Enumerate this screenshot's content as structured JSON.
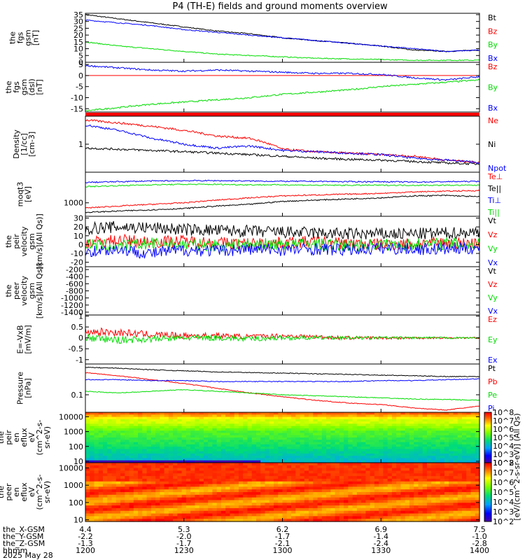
{
  "title": "P4 (TH-E) fields and ground moments overview",
  "colors": {
    "black": "#000000",
    "red": "#ff0000",
    "green": "#00dd00",
    "blue": "#0000ff"
  },
  "chart_data": [
    {
      "type": "line",
      "panel": "fgs_gsm_total",
      "ylabel_lines": [
        "the",
        "fgs",
        "gsm",
        "[nT]"
      ],
      "yticks": [
        0,
        5,
        10,
        15,
        20,
        25,
        30,
        35
      ],
      "ylim": [
        0,
        36
      ],
      "x": [
        "1200",
        "1210",
        "1220",
        "1230",
        "1240",
        "1250",
        "1300",
        "1310",
        "1320",
        "1330",
        "1340",
        "1350",
        "1400"
      ],
      "series": [
        {
          "name": "Bt",
          "color": "#000000",
          "values": [
            35,
            32,
            29,
            26,
            23,
            21,
            18,
            16,
            14,
            12,
            9,
            8,
            9
          ]
        },
        {
          "name": "Bz",
          "color": "#ff0000",
          "values": [
            0,
            0,
            0,
            0,
            0,
            0,
            0,
            0,
            0,
            0,
            0,
            0,
            0
          ]
        },
        {
          "name": "By",
          "color": "#00dd00",
          "values": [
            15,
            12,
            10,
            8,
            6,
            5,
            4,
            3,
            2.5,
            2,
            1.5,
            1.5,
            1.5
          ]
        },
        {
          "name": "Bx",
          "color": "#0000ff",
          "values": [
            31,
            29,
            27,
            24,
            22,
            20,
            18,
            16,
            14,
            12,
            10,
            8,
            9
          ]
        }
      ],
      "legend": [
        "Bt",
        "Bz",
        "By",
        "Bx"
      ]
    },
    {
      "type": "line",
      "panel": "fgs_gsm_dsl",
      "ylabel_lines": [
        "the",
        "fgs",
        "gsm",
        "(dsl)",
        "[nT]"
      ],
      "yticks": [
        -15,
        -10,
        -5,
        0,
        5
      ],
      "ylim": [
        -16.5,
        6
      ],
      "x": [
        "1200",
        "1210",
        "1220",
        "1230",
        "1240",
        "1250",
        "1300",
        "1310",
        "1320",
        "1330",
        "1340",
        "1350",
        "1400"
      ],
      "series": [
        {
          "name": "Bz",
          "color": "#ff0000",
          "values": [
            0,
            0,
            0,
            0,
            0,
            0,
            0,
            0,
            0,
            0,
            0,
            0,
            0
          ]
        },
        {
          "name": "By",
          "color": "#00dd00",
          "values": [
            -16,
            -14.5,
            -13,
            -12,
            -11,
            -10,
            -8.5,
            -7.5,
            -6.5,
            -5,
            -4,
            -3,
            -2
          ]
        },
        {
          "name": "Bx",
          "color": "#0000ff",
          "values": [
            4.5,
            3.5,
            2.5,
            2,
            2.5,
            2,
            1.5,
            1,
            1,
            0.5,
            -1,
            -2,
            -0.5
          ]
        }
      ],
      "legend": [
        "Bz",
        "By",
        "Bx"
      ]
    },
    {
      "type": "line",
      "panel": "density",
      "scale": "log",
      "ylabel_lines": [
        "Density",
        "[1/cc]",
        "[cm-3]"
      ],
      "yticks": [
        1
      ],
      "ylim": [
        0.2,
        5
      ],
      "x": [
        "1200",
        "1210",
        "1220",
        "1230",
        "1240",
        "1250",
        "1300",
        "1310",
        "1320",
        "1330",
        "1340",
        "1350",
        "1400"
      ],
      "series": [
        {
          "name": "Ne",
          "color": "#ff0000",
          "values": [
            4,
            3.4,
            2.8,
            2.2,
            1.6,
            1.4,
            0.75,
            0.65,
            0.6,
            0.55,
            0.5,
            0.4,
            0.35
          ]
        },
        {
          "name": "Ni",
          "color": "#000000",
          "values": [
            0.8,
            0.75,
            0.7,
            0.65,
            0.6,
            0.55,
            0.5,
            0.45,
            0.42,
            0.4,
            0.37,
            0.34,
            0.32
          ]
        },
        {
          "name": "Npot",
          "color": "#0000ff",
          "values": [
            3,
            2.2,
            1.4,
            1,
            0.8,
            0.9,
            0.7,
            0.65,
            0.6,
            0.55,
            0.45,
            0.4,
            0.35
          ]
        }
      ],
      "legend": [
        "Ne",
        "Ni",
        "Npot"
      ]
    },
    {
      "type": "line",
      "panel": "temperature",
      "scale": "log",
      "ylabel_lines": [
        "moqt3",
        "[eV]"
      ],
      "yticks": [
        1000
      ],
      "ylim": [
        400,
        8000
      ],
      "x": [
        "1200",
        "1210",
        "1220",
        "1230",
        "1240",
        "1250",
        "1300",
        "1310",
        "1320",
        "1330",
        "1340",
        "1350",
        "1400"
      ],
      "series": [
        {
          "name": "Te⊥",
          "color": "#ff0000",
          "values": [
            700,
            800,
            900,
            1000,
            1200,
            1400,
            1600,
            1700,
            1800,
            1900,
            2100,
            2200,
            2300
          ]
        },
        {
          "name": "Te||",
          "color": "#000000",
          "values": [
            520,
            570,
            620,
            680,
            800,
            900,
            1100,
            1200,
            1300,
            1400,
            1600,
            1650,
            1500
          ]
        },
        {
          "name": "Ti⊥",
          "color": "#0000ff",
          "values": [
            4000,
            4200,
            4400,
            4500,
            4500,
            4400,
            4300,
            4300,
            4200,
            4200,
            4100,
            4200,
            4300
          ]
        },
        {
          "name": "Ti||",
          "color": "#00dd00",
          "values": [
            3000,
            3200,
            3400,
            3500,
            3500,
            3400,
            3400,
            3300,
            3300,
            3300,
            3300,
            3300,
            3300
          ]
        }
      ],
      "legend": [
        "Te⊥",
        "Te||",
        "Ti⊥",
        "Ti||"
      ]
    },
    {
      "type": "line",
      "panel": "peir_velocity",
      "ylabel_lines": [
        "the",
        "peir",
        "velocity",
        "gsm",
        "[km/s](All Qs)]"
      ],
      "yticks": [
        -20,
        -10,
        0,
        10,
        20,
        30
      ],
      "ylim": [
        -25,
        32
      ],
      "x": [
        "1200",
        "1210",
        "1220",
        "1230",
        "1240",
        "1250",
        "1300",
        "1310",
        "1320",
        "1330",
        "1340",
        "1350",
        "1400"
      ],
      "series": [
        {
          "name": "Vt",
          "color": "#000000",
          "values": [
            18,
            20,
            19,
            17,
            16,
            15,
            14,
            13,
            12,
            12,
            12,
            13,
            14
          ]
        },
        {
          "name": "Vz",
          "color": "#ff0000",
          "values": [
            2,
            5,
            3,
            4,
            2,
            1,
            2,
            3,
            1,
            0,
            1,
            2,
            1
          ]
        },
        {
          "name": "Vy",
          "color": "#00dd00",
          "values": [
            0,
            -2,
            1,
            0,
            -1,
            0,
            1,
            0,
            -1,
            0,
            0,
            1,
            0
          ]
        },
        {
          "name": "Vx",
          "color": "#0000ff",
          "values": [
            -8,
            -5,
            -10,
            -6,
            -7,
            -5,
            -6,
            -5,
            -6,
            -4,
            -5,
            -5,
            -4
          ]
        }
      ],
      "legend": [
        "Vt",
        "Vz",
        "Vy",
        "Vx"
      ]
    },
    {
      "type": "line",
      "panel": "peer_velocity",
      "ylabel_lines": [
        "the",
        "peer",
        "velocity",
        "gsm",
        "[km/s](All Qs)]"
      ],
      "yticks": [
        -1400,
        -1200,
        -1000,
        -800,
        -600,
        -400,
        -200
      ],
      "ylim": [
        -1480,
        -120
      ],
      "x": [],
      "series": [],
      "legend": [
        "Vt",
        "Vz",
        "Vy",
        "Vx"
      ]
    },
    {
      "type": "line",
      "panel": "efield",
      "ylabel_lines": [
        "E=-VxB",
        "[mV/m]"
      ],
      "yticks": [
        -1.0,
        -0.5,
        0.0,
        0.5,
        1.0
      ],
      "ylim": [
        -1.2,
        1.05
      ],
      "x": [
        "1200",
        "1210",
        "1220",
        "1230",
        "1240",
        "1250",
        "1300",
        "1310",
        "1320",
        "1330",
        "1340",
        "1350",
        "1400"
      ],
      "series": [
        {
          "name": "Ez",
          "color": "#ff0000",
          "values": [
            0.3,
            0.25,
            0.15,
            0.1,
            0.1,
            0.05,
            0.1,
            0.05,
            0.0,
            0.0,
            0.0,
            0.0,
            0.0
          ]
        },
        {
          "name": "Ey",
          "color": "#00dd00",
          "values": [
            0.0,
            -0.1,
            -0.05,
            0.0,
            0.0,
            -0.05,
            0.0,
            0.0,
            0.0,
            0.0,
            0.0,
            0.0,
            0.0
          ]
        },
        {
          "name": "Ex",
          "color": "#0000ff",
          "values": [
            0,
            0,
            0,
            0,
            0,
            0,
            0,
            0,
            0,
            0,
            0,
            0,
            0
          ]
        }
      ],
      "legend": [
        "Ez",
        "Ey",
        "Ex"
      ]
    },
    {
      "type": "line",
      "panel": "pressure",
      "scale": "log",
      "ylabel_lines": [
        "Pressure",
        "[nPa]"
      ],
      "yticks": [
        0.1
      ],
      "ylim": [
        0.04,
        0.5
      ],
      "x": [
        "1200",
        "1210",
        "1220",
        "1230",
        "1240",
        "1250",
        "1300",
        "1310",
        "1320",
        "1330",
        "1340",
        "1350",
        "1400"
      ],
      "series": [
        {
          "name": "Pt",
          "color": "#000000",
          "values": [
            0.42,
            0.4,
            0.37,
            0.35,
            0.33,
            0.32,
            0.31,
            0.3,
            0.29,
            0.28,
            0.27,
            0.26,
            0.26
          ]
        },
        {
          "name": "Pb",
          "color": "#ff0000",
          "values": [
            0.32,
            0.27,
            0.22,
            0.18,
            0.14,
            0.11,
            0.09,
            0.075,
            0.065,
            0.06,
            0.05,
            0.045,
            0.055
          ]
        },
        {
          "name": "Pe",
          "color": "#00dd00",
          "values": [
            0.12,
            0.11,
            0.12,
            0.13,
            0.12,
            0.11,
            0.1,
            0.095,
            0.09,
            0.085,
            0.08,
            0.078,
            0.075
          ]
        },
        {
          "name": "Pi",
          "color": "#0000ff",
          "values": [
            0.22,
            0.22,
            0.21,
            0.21,
            0.2,
            0.2,
            0.2,
            0.2,
            0.2,
            0.21,
            0.21,
            0.22,
            0.23
          ]
        }
      ],
      "legend": [
        "Pt",
        "Pb",
        "Pe",
        "Pi"
      ]
    },
    {
      "type": "heatmap",
      "panel": "peir_spectrogram",
      "scale": "log",
      "ylabel_lines": [
        "the",
        "peir",
        "en",
        "eflux",
        "eV",
        "(cm^2-s-",
        "sr-eV)"
      ],
      "yticks": [
        10,
        100,
        1000,
        10000
      ],
      "ylim": [
        8,
        20000
      ],
      "colorbar": {
        "ticks": [
          "10^2",
          "10^3",
          "10^4",
          "10^5",
          "10^6",
          "10^7",
          "10^8"
        ],
        "label": "[eV/(cm^2-s-sr-eV)] (All Qs)"
      }
    },
    {
      "type": "heatmap",
      "panel": "peer_spectrogram",
      "scale": "log",
      "ylabel_lines": [
        "the",
        "peer",
        "en",
        "eflux",
        "eV",
        "(cm^2-s-",
        "sr-eV)"
      ],
      "yticks": [
        10,
        100,
        1000,
        10000
      ],
      "ylim": [
        8,
        20000
      ],
      "colorbar": {
        "ticks": [
          "10^2",
          "10^3",
          "10^4",
          "10^5",
          "10^6",
          "10^7",
          "10^8"
        ],
        "label": "[eV/(cm^2-s-sr-eV)] (All Qs)"
      }
    }
  ],
  "footer": {
    "rows": [
      {
        "label": "the_X-GSM",
        "values": [
          "4.4",
          "5.3",
          "6.2",
          "6.9",
          "7.5"
        ]
      },
      {
        "label": "the_Y-GSM",
        "values": [
          "-2.2",
          "-2.0",
          "-1.7",
          "-1.4",
          "-1.0"
        ]
      },
      {
        "label": "the_Z-GSM",
        "values": [
          "-1.3",
          "-1.7",
          "-2.1",
          "-2.4",
          "-2.8"
        ]
      },
      {
        "label": "hhmm",
        "values": [
          "1200",
          "1230",
          "1300",
          "1330",
          "1400"
        ]
      }
    ],
    "date": "2025 May 28"
  }
}
